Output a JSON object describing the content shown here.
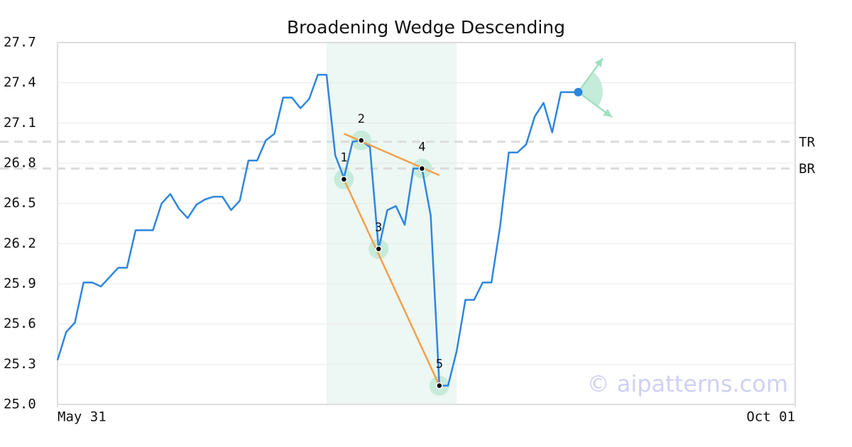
{
  "chart_data": {
    "type": "line",
    "title": "Broadening Wedge Descending",
    "x": [
      0,
      1,
      2,
      3,
      4,
      5,
      6,
      7,
      8,
      9,
      10,
      11,
      12,
      13,
      14,
      15,
      16,
      17,
      18,
      19,
      20,
      21,
      22,
      23,
      24,
      25,
      26,
      27,
      28,
      29,
      30,
      31,
      32,
      33,
      34,
      35,
      36,
      37,
      38,
      39,
      40,
      41,
      42,
      43,
      44,
      45,
      46,
      47,
      48,
      49,
      50,
      51,
      52,
      53,
      54,
      55,
      56,
      57,
      58,
      59,
      60
    ],
    "values": [
      25.33,
      25.54,
      25.61,
      25.91,
      25.91,
      25.88,
      25.95,
      26.02,
      26.02,
      26.3,
      26.3,
      26.3,
      26.5,
      26.57,
      26.46,
      26.39,
      26.49,
      26.53,
      26.55,
      26.55,
      26.45,
      26.52,
      26.82,
      26.82,
      26.97,
      27.02,
      27.29,
      27.29,
      27.21,
      27.28,
      27.46,
      27.46,
      26.86,
      26.69,
      26.96,
      26.97,
      26.92,
      26.16,
      26.45,
      26.48,
      26.34,
      26.76,
      26.76,
      26.41,
      25.14,
      25.14,
      25.4,
      25.78,
      25.78,
      25.91,
      25.91,
      26.33,
      26.88,
      26.88,
      26.94,
      27.15,
      27.25,
      27.03,
      27.33,
      27.33,
      27.33
    ],
    "color": "#2e86de",
    "xlim": [
      0,
      85
    ],
    "xticks": [
      {
        "value": 0,
        "label": "May 31"
      },
      {
        "value": 85,
        "label": "Oct 01"
      }
    ],
    "ylim": [
      25.0,
      27.7
    ],
    "yticks": [
      {
        "value": 25.0,
        "label": "25.0"
      },
      25.3,
      25.6,
      25.9,
      26.2,
      26.5,
      26.8,
      27.1,
      27.4,
      27.7
    ],
    "grid": true,
    "highlight": [
      31,
      46
    ],
    "pivots": [
      {
        "label": "1",
        "x": 33,
        "value": 26.68
      },
      {
        "label": "2",
        "x": 35,
        "value": 26.97
      },
      {
        "label": "3",
        "x": 37,
        "value": 26.16
      },
      {
        "label": "4",
        "x": 42,
        "value": 26.76
      },
      {
        "label": "5",
        "x": 44,
        "value": 25.14
      }
    ],
    "trendlines": [
      {
        "color": "#f5a04a",
        "x": [
          33,
          44
        ],
        "values": [
          27.02,
          26.71
        ]
      },
      {
        "color": "#f5a04a",
        "x": [
          33,
          44
        ],
        "values": [
          26.68,
          25.14
        ]
      }
    ],
    "levels": [
      {
        "label": "TR",
        "value": 26.96
      },
      {
        "label": "BR",
        "value": 26.76
      }
    ],
    "watermark": "© aipatterns.com"
  }
}
